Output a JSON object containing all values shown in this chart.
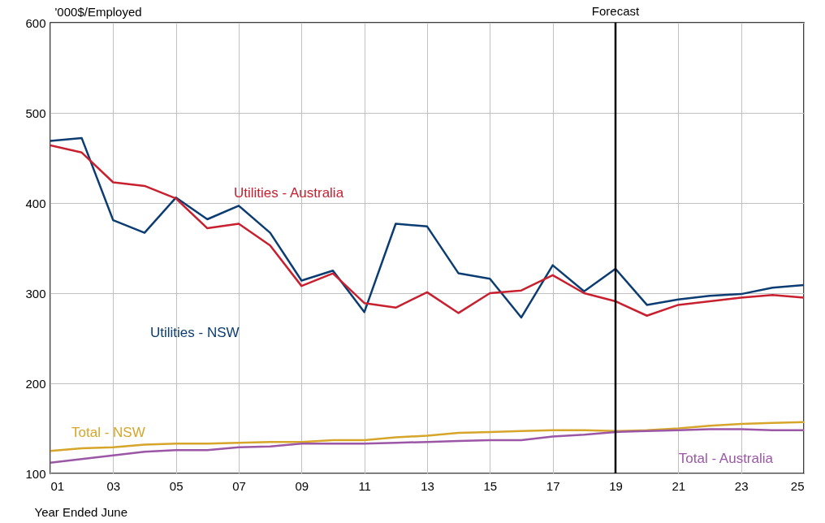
{
  "chart_data": {
    "type": "line",
    "ylabel": "'000$/Employed",
    "xlabel": "Year Ended June",
    "x": [
      1,
      2,
      3,
      4,
      5,
      6,
      7,
      8,
      9,
      10,
      11,
      12,
      13,
      14,
      15,
      16,
      17,
      18,
      19,
      20,
      21,
      22,
      23,
      24,
      25
    ],
    "xlim": [
      1,
      25
    ],
    "xticks": [
      {
        "value": 1,
        "label": "01"
      },
      {
        "value": 3,
        "label": "03"
      },
      {
        "value": 5,
        "label": "05"
      },
      {
        "value": 7,
        "label": "07"
      },
      {
        "value": 9,
        "label": "09"
      },
      {
        "value": 11,
        "label": "11"
      },
      {
        "value": 13,
        "label": "13"
      },
      {
        "value": 15,
        "label": "15"
      },
      {
        "value": 17,
        "label": "17"
      },
      {
        "value": 19,
        "label": "19"
      },
      {
        "value": 21,
        "label": "21"
      },
      {
        "value": 23,
        "label": "23"
      },
      {
        "value": 25,
        "label": "25"
      }
    ],
    "ylim": [
      100,
      600
    ],
    "yticks": [
      100,
      200,
      300,
      400,
      500,
      600
    ],
    "grid": true,
    "legend": false,
    "series": [
      {
        "name": "Utilities - NSW",
        "color": "#0b3c72",
        "values": [
          469,
          472,
          381,
          367,
          406,
          382,
          397,
          367,
          314,
          325,
          279,
          377,
          374,
          322,
          316,
          273,
          331,
          302,
          327,
          287,
          293,
          297,
          299,
          306,
          309
        ]
      },
      {
        "name": "Utilities - Australia",
        "color": "#c8202f",
        "values": [
          464,
          456,
          423,
          419,
          405,
          372,
          377,
          353,
          308,
          322,
          289,
          284,
          301,
          278,
          300,
          303,
          320,
          300,
          291,
          275,
          287,
          291,
          295,
          298,
          295
        ]
      },
      {
        "name": "Total - NSW",
        "color": "#d6a52a",
        "values": [
          125,
          128,
          129,
          132,
          133,
          133,
          134,
          135,
          135,
          137,
          137,
          140,
          142,
          145,
          146,
          147,
          148,
          148,
          147,
          148,
          150,
          153,
          155,
          156,
          157
        ]
      },
      {
        "name": "Total - Australia",
        "color": "#9b57a6",
        "values": [
          112,
          116,
          120,
          124,
          126,
          126,
          129,
          130,
          133,
          133,
          133,
          134,
          135,
          136,
          137,
          137,
          141,
          143,
          146,
          147,
          148,
          149,
          149,
          148,
          148
        ]
      }
    ],
    "ref_lines": [
      {
        "axis": "x",
        "value": 19,
        "label": "Forecast",
        "color": "#000000"
      }
    ]
  }
}
